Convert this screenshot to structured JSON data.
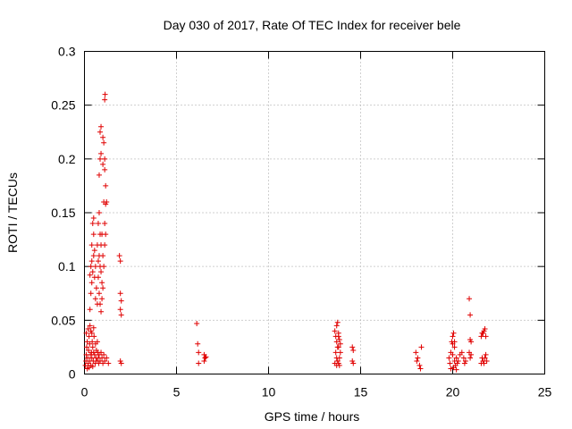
{
  "chart_data": {
    "type": "scatter",
    "title": "Day 030 of 2017, Rate Of TEC Index for receiver bele",
    "xlabel": "GPS time / hours",
    "ylabel": "ROTI / TECUs",
    "xlim": [
      0,
      25
    ],
    "ylim": [
      0,
      0.3
    ],
    "xticks": [
      0,
      5,
      10,
      15,
      20,
      25
    ],
    "xtick_labels": [
      "0",
      "5",
      "10",
      "15",
      "20",
      "25"
    ],
    "yticks": [
      0,
      0.05,
      0.1,
      0.15,
      0.2,
      0.25,
      0.3
    ],
    "ytick_labels": [
      "0",
      "0.05",
      "0.1",
      "0.15",
      "0.2",
      "0.25",
      "0.3"
    ],
    "grid": true,
    "marker": "plus",
    "color": "#e00000",
    "points": [
      [
        0.05,
        0.008
      ],
      [
        0.08,
        0.012
      ],
      [
        0.1,
        0.018
      ],
      [
        0.12,
        0.025
      ],
      [
        0.15,
        0.03
      ],
      [
        0.18,
        0.015
      ],
      [
        0.2,
        0.01
      ],
      [
        0.22,
        0.022
      ],
      [
        0.25,
        0.035
      ],
      [
        0.28,
        0.028
      ],
      [
        0.3,
        0.012
      ],
      [
        0.32,
        0.018
      ],
      [
        0.35,
        0.04
      ],
      [
        0.38,
        0.02
      ],
      [
        0.4,
        0.015
      ],
      [
        0.42,
        0.03
      ],
      [
        0.45,
        0.025
      ],
      [
        0.48,
        0.012
      ],
      [
        0.5,
        0.02
      ],
      [
        0.52,
        0.035
      ],
      [
        0.55,
        0.018
      ],
      [
        0.58,
        0.01
      ],
      [
        0.6,
        0.028
      ],
      [
        0.62,
        0.015
      ],
      [
        0.65,
        0.022
      ],
      [
        0.68,
        0.012
      ],
      [
        0.7,
        0.03
      ],
      [
        0.72,
        0.02
      ],
      [
        0.75,
        0.015
      ],
      [
        0.78,
        0.01
      ],
      [
        0.8,
        0.018
      ],
      [
        0.85,
        0.012
      ],
      [
        0.9,
        0.02
      ],
      [
        0.95,
        0.015
      ],
      [
        1.0,
        0.01
      ],
      [
        1.05,
        0.018
      ],
      [
        1.1,
        0.012
      ],
      [
        1.2,
        0.015
      ],
      [
        1.3,
        0.01
      ],
      [
        0.15,
        0.005
      ],
      [
        0.25,
        0.006
      ],
      [
        0.35,
        0.008
      ],
      [
        0.45,
        0.007
      ],
      [
        0.1,
        0.038
      ],
      [
        0.2,
        0.042
      ],
      [
        0.3,
        0.045
      ],
      [
        0.4,
        0.038
      ],
      [
        0.5,
        0.043
      ],
      [
        0.3,
        0.06
      ],
      [
        0.35,
        0.075
      ],
      [
        0.4,
        0.085
      ],
      [
        0.45,
        0.095
      ],
      [
        0.5,
        0.11
      ],
      [
        0.4,
        0.12
      ],
      [
        0.5,
        0.13
      ],
      [
        0.35,
        0.1
      ],
      [
        0.55,
        0.09
      ],
      [
        0.6,
        0.07
      ],
      [
        0.65,
        0.08
      ],
      [
        0.7,
        0.065
      ],
      [
        0.6,
        0.1
      ],
      [
        0.55,
        0.115
      ],
      [
        0.45,
        0.14
      ],
      [
        0.5,
        0.145
      ],
      [
        0.4,
        0.105
      ],
      [
        0.3,
        0.092
      ],
      [
        0.7,
        0.12
      ],
      [
        0.75,
        0.14
      ],
      [
        0.8,
        0.15
      ],
      [
        0.85,
        0.13
      ],
      [
        0.9,
        0.12
      ],
      [
        0.75,
        0.105
      ],
      [
        0.8,
        0.11
      ],
      [
        0.85,
        0.1
      ],
      [
        0.9,
        0.095
      ],
      [
        0.95,
        0.085
      ],
      [
        1.0,
        0.08
      ],
      [
        0.8,
        0.075
      ],
      [
        0.85,
        0.065
      ],
      [
        0.9,
        0.058
      ],
      [
        0.95,
        0.07
      ],
      [
        1.0,
        0.11
      ],
      [
        1.05,
        0.1
      ],
      [
        1.1,
        0.12
      ],
      [
        0.75,
        0.09
      ],
      [
        0.95,
        0.13
      ],
      [
        0.8,
        0.185
      ],
      [
        0.85,
        0.2
      ],
      [
        0.9,
        0.205
      ],
      [
        0.85,
        0.225
      ],
      [
        0.9,
        0.23
      ],
      [
        1.0,
        0.22
      ],
      [
        1.05,
        0.215
      ],
      [
        1.1,
        0.19
      ],
      [
        1.15,
        0.175
      ],
      [
        1.1,
        0.2
      ],
      [
        1.15,
        0.158
      ],
      [
        1.2,
        0.16
      ],
      [
        1.1,
        0.255
      ],
      [
        1.12,
        0.26
      ],
      [
        1.05,
        0.16
      ],
      [
        1.1,
        0.14
      ],
      [
        1.15,
        0.13
      ],
      [
        1.0,
        0.195
      ],
      [
        1.9,
        0.11
      ],
      [
        1.95,
        0.105
      ],
      [
        1.95,
        0.075
      ],
      [
        2.0,
        0.068
      ],
      [
        1.95,
        0.06
      ],
      [
        2.0,
        0.055
      ],
      [
        1.95,
        0.012
      ],
      [
        2.0,
        0.01
      ],
      [
        6.1,
        0.047
      ],
      [
        6.15,
        0.028
      ],
      [
        6.2,
        0.02
      ],
      [
        6.2,
        0.01
      ],
      [
        6.5,
        0.018
      ],
      [
        6.55,
        0.015
      ],
      [
        6.5,
        0.012
      ],
      [
        6.6,
        0.016
      ],
      [
        13.6,
        0.04
      ],
      [
        13.7,
        0.045
      ],
      [
        13.75,
        0.048
      ],
      [
        13.8,
        0.035
      ],
      [
        13.7,
        0.03
      ],
      [
        13.75,
        0.025
      ],
      [
        13.8,
        0.038
      ],
      [
        13.85,
        0.032
      ],
      [
        13.65,
        0.02
      ],
      [
        13.7,
        0.015
      ],
      [
        13.75,
        0.012
      ],
      [
        13.8,
        0.01
      ],
      [
        13.85,
        0.008
      ],
      [
        13.9,
        0.02
      ],
      [
        13.8,
        0.025
      ],
      [
        13.9,
        0.028
      ],
      [
        13.6,
        0.01
      ],
      [
        13.65,
        0.035
      ],
      [
        13.85,
        0.015
      ],
      [
        13.7,
        0.008
      ],
      [
        14.55,
        0.025
      ],
      [
        14.6,
        0.022
      ],
      [
        14.6,
        0.01
      ],
      [
        14.55,
        0.012
      ],
      [
        18.0,
        0.02
      ],
      [
        18.1,
        0.015
      ],
      [
        18.2,
        0.008
      ],
      [
        18.05,
        0.012
      ],
      [
        18.3,
        0.025
      ],
      [
        18.25,
        0.005
      ],
      [
        19.8,
        0.015
      ],
      [
        19.85,
        0.01
      ],
      [
        19.9,
        0.02
      ],
      [
        19.95,
        0.03
      ],
      [
        20.0,
        0.035
      ],
      [
        20.05,
        0.038
      ],
      [
        20.1,
        0.025
      ],
      [
        20.0,
        0.018
      ],
      [
        20.1,
        0.012
      ],
      [
        20.15,
        0.008
      ],
      [
        20.2,
        0.015
      ],
      [
        20.25,
        0.01
      ],
      [
        20.3,
        0.012
      ],
      [
        20.4,
        0.018
      ],
      [
        20.5,
        0.02
      ],
      [
        20.6,
        0.015
      ],
      [
        20.65,
        0.01
      ],
      [
        20.7,
        0.012
      ],
      [
        19.9,
        0.005
      ],
      [
        20.05,
        0.006
      ],
      [
        20.2,
        0.004
      ],
      [
        20.0,
        0.028
      ],
      [
        20.1,
        0.03
      ],
      [
        20.9,
        0.07
      ],
      [
        20.95,
        0.055
      ],
      [
        20.95,
        0.032
      ],
      [
        21.0,
        0.03
      ],
      [
        20.9,
        0.02
      ],
      [
        20.95,
        0.015
      ],
      [
        21.0,
        0.018
      ],
      [
        21.55,
        0.035
      ],
      [
        21.6,
        0.038
      ],
      [
        21.7,
        0.04
      ],
      [
        21.75,
        0.042
      ],
      [
        21.8,
        0.035
      ],
      [
        21.6,
        0.015
      ],
      [
        21.65,
        0.012
      ],
      [
        21.7,
        0.01
      ],
      [
        21.75,
        0.015
      ],
      [
        21.8,
        0.018
      ],
      [
        21.85,
        0.012
      ],
      [
        21.55,
        0.01
      ],
      [
        21.65,
        0.038
      ]
    ]
  }
}
